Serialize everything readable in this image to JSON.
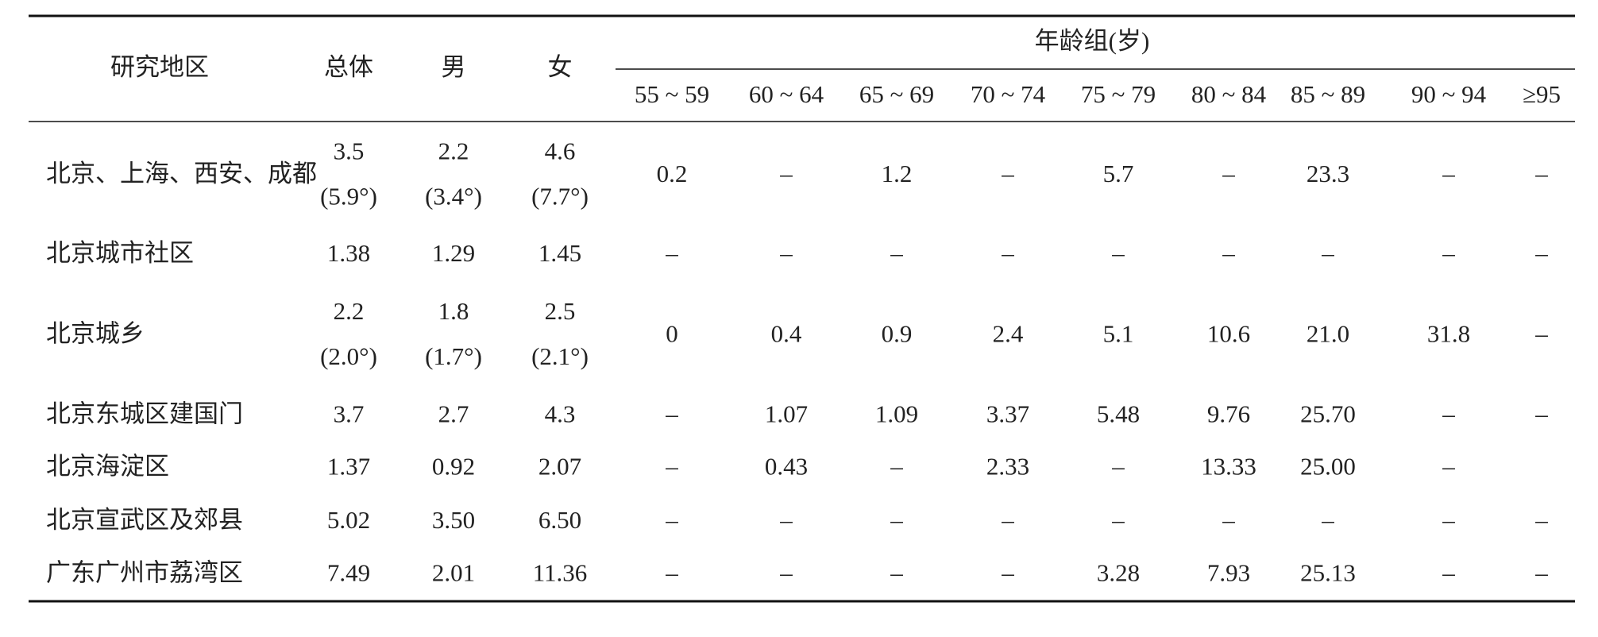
{
  "table": {
    "header": {
      "columns": [
        "研究地区",
        "总体",
        "男",
        "女"
      ],
      "group": "年龄组(岁)",
      "age_groups": [
        "55 ~ 59",
        "60 ~ 64",
        "65 ~ 69",
        "70 ~ 74",
        "75 ~ 79",
        "80 ~ 84",
        "85 ~ 89",
        "90 ~ 94",
        "≥95"
      ]
    },
    "rows": [
      [
        "北京、上海、西安、成都",
        [
          "3.5",
          "(5.9°)"
        ],
        [
          "2.2",
          "(3.4°)"
        ],
        [
          "4.6",
          "(7.7°)"
        ],
        "0.2",
        "–",
        "1.2",
        "–",
        "5.7",
        "–",
        "23.3",
        "–",
        "–"
      ],
      [
        "北京城市社区",
        "1.38",
        "1.29",
        "1.45",
        "–",
        "–",
        "–",
        "–",
        "–",
        "–",
        "–",
        "–",
        "–"
      ],
      [
        "北京城乡",
        [
          "2.2",
          "(2.0°)"
        ],
        [
          "1.8",
          "(1.7°)"
        ],
        [
          "2.5",
          "(2.1°)"
        ],
        "0",
        "0.4",
        "0.9",
        "2.4",
        "5.1",
        "10.6",
        "21.0",
        "31.8",
        "–"
      ],
      [
        "北京东城区建国门",
        "3.7",
        "2.7",
        "4.3",
        "–",
        "1.07",
        "1.09",
        "3.37",
        "5.48",
        "9.76",
        "25.70",
        "–",
        "–"
      ],
      [
        "北京海淀区",
        "1.37",
        "0.92",
        "2.07",
        "–",
        "0.43",
        "–",
        "2.33",
        "–",
        "13.33",
        "25.00",
        "–",
        null
      ],
      [
        "北京宣武区及郊县",
        "5.02",
        "3.50",
        "6.50",
        "–",
        "–",
        "–",
        "–",
        "–",
        "–",
        "–",
        "–",
        "–"
      ],
      [
        "广东广州市荔湾区",
        "7.49",
        "2.01",
        "11.36",
        "–",
        "–",
        "–",
        "–",
        "3.28",
        "7.93",
        "25.13",
        "–",
        "–"
      ]
    ]
  }
}
